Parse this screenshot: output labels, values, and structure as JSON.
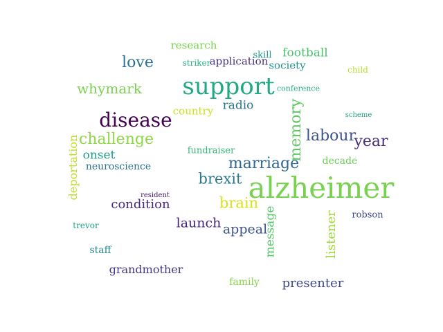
{
  "words": [
    {
      "text": "alzheimer",
      "color": "#7ad151"
    },
    {
      "text": "support",
      "color": "#22a884"
    },
    {
      "text": "disease",
      "color": "#440154"
    },
    {
      "text": "challenge",
      "color": "#8fd744"
    },
    {
      "text": "marriage",
      "color": "#31688e"
    },
    {
      "text": "memory",
      "color": "#5ec962"
    },
    {
      "text": "labour",
      "color": "#3b528b"
    },
    {
      "text": "year",
      "color": "#472d7b"
    },
    {
      "text": "brexit",
      "color": "#2a788e"
    },
    {
      "text": "brain",
      "color": "#d8e219"
    },
    {
      "text": "love",
      "color": "#2c728e"
    },
    {
      "text": "whymark",
      "color": "#7ad151"
    },
    {
      "text": "listener",
      "color": "#a0da39"
    },
    {
      "text": "message",
      "color": "#54c568"
    },
    {
      "text": "appeal",
      "color": "#3b528b"
    },
    {
      "text": "launch",
      "color": "#482475"
    },
    {
      "text": "condition",
      "color": "#472d7b"
    },
    {
      "text": "presenter",
      "color": "#3e4989"
    },
    {
      "text": "football",
      "color": "#4ac16d"
    },
    {
      "text": "radio",
      "color": "#2a788e"
    },
    {
      "text": "onset",
      "color": "#1f9e89"
    },
    {
      "text": "grandmother",
      "color": "#443983"
    },
    {
      "text": "deportation",
      "color": "#bddf26"
    },
    {
      "text": "research",
      "color": "#7ad151"
    },
    {
      "text": "application",
      "color": "#46327e"
    },
    {
      "text": "country",
      "color": "#cae11f"
    },
    {
      "text": "society",
      "color": "#21918c"
    },
    {
      "text": "decade",
      "color": "#6ece58"
    },
    {
      "text": "neuroscience",
      "color": "#2c728e"
    },
    {
      "text": "family",
      "color": "#86d549"
    },
    {
      "text": "fundraiser",
      "color": "#35b779"
    },
    {
      "text": "staff",
      "color": "#25848e"
    },
    {
      "text": "robson",
      "color": "#3e4989"
    },
    {
      "text": "skill",
      "color": "#1f9a8a"
    },
    {
      "text": "striker",
      "color": "#2ab07f"
    },
    {
      "text": "child",
      "color": "#b5de2b"
    },
    {
      "text": "conference",
      "color": "#29af7f"
    },
    {
      "text": "trevor",
      "color": "#20a486"
    },
    {
      "text": "scheme",
      "color": "#1fa187"
    },
    {
      "text": "resident",
      "color": "#481a6c"
    }
  ]
}
